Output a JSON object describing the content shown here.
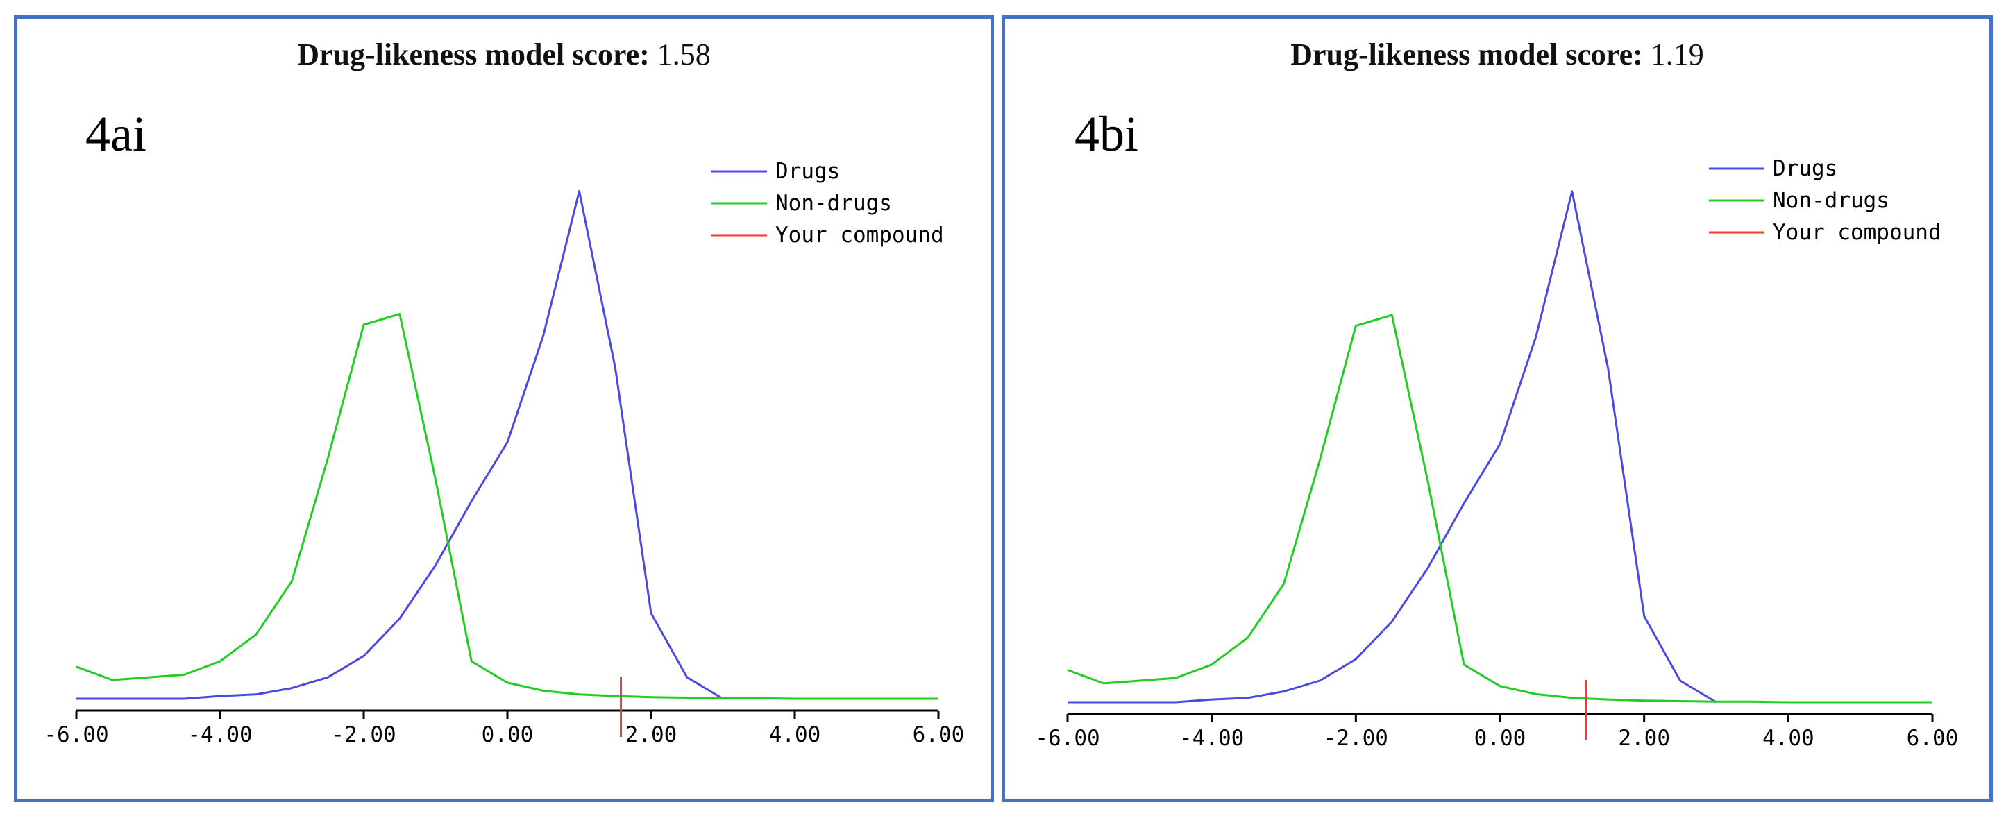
{
  "chart_data": [
    {
      "type": "line",
      "panel_label": "4ai",
      "title": "Drug-likeness model score:",
      "score_value": "1.58",
      "compound_score": 1.58,
      "xlim": [
        -6,
        6
      ],
      "ylim": [
        0,
        1
      ],
      "xticks": [
        -6,
        -4,
        -2,
        0,
        2,
        4,
        6
      ],
      "xtick_labels": [
        "-6.00",
        "-4.00",
        "-2.00",
        "0.00",
        "2.00",
        "4.00",
        "6.00"
      ],
      "legend_position": "top-right",
      "series": [
        {
          "name": "Drugs",
          "color": "#4a4ae0",
          "x": [
            -6.0,
            -5.5,
            -5.0,
            -4.5,
            -4.0,
            -3.5,
            -3.0,
            -2.5,
            -2.0,
            -1.5,
            -1.0,
            -0.5,
            0.0,
            0.5,
            1.0,
            1.5,
            2.0,
            2.5,
            3.0
          ],
          "y": [
            0.0,
            0.0,
            0.0,
            0.0,
            0.005,
            0.008,
            0.02,
            0.04,
            0.08,
            0.15,
            0.25,
            0.37,
            0.48,
            0.68,
            0.95,
            0.62,
            0.16,
            0.04,
            0.0
          ]
        },
        {
          "name": "Non-drugs",
          "color": "#22cc22",
          "x": [
            -6.0,
            -5.5,
            -5.0,
            -4.5,
            -4.0,
            -3.5,
            -3.0,
            -2.5,
            -2.0,
            -1.5,
            -1.0,
            -0.5,
            0.0,
            0.5,
            1.0,
            1.5,
            2.0,
            2.5,
            3.0,
            3.5,
            4.0,
            4.5,
            5.0,
            5.5,
            6.0
          ],
          "y": [
            0.06,
            0.035,
            0.04,
            0.045,
            0.07,
            0.12,
            0.22,
            0.45,
            0.7,
            0.72,
            0.41,
            0.07,
            0.03,
            0.015,
            0.008,
            0.005,
            0.003,
            0.002,
            0.001,
            0.001,
            0.0,
            0.0,
            0.0,
            0.0,
            0.0
          ]
        },
        {
          "name": "Your compound",
          "color": "#ff3333"
        }
      ]
    },
    {
      "type": "line",
      "panel_label": "4bi",
      "title": "Drug-likeness model score:",
      "score_value": "1.19",
      "compound_score": 1.19,
      "xlim": [
        -6,
        6
      ],
      "ylim": [
        0,
        1
      ],
      "xticks": [
        -6,
        -4,
        -2,
        0,
        2,
        4,
        6
      ],
      "xtick_labels": [
        "-6.00",
        "-4.00",
        "-2.00",
        "0.00",
        "2.00",
        "4.00",
        "6.00"
      ],
      "legend_position": "top-right",
      "series": [
        {
          "name": "Drugs",
          "color": "#4a4ae0",
          "x": [
            -6.0,
            -5.5,
            -5.0,
            -4.5,
            -4.0,
            -3.5,
            -3.0,
            -2.5,
            -2.0,
            -1.5,
            -1.0,
            -0.5,
            0.0,
            0.5,
            1.0,
            1.5,
            2.0,
            2.5,
            3.0
          ],
          "y": [
            0.0,
            0.0,
            0.0,
            0.0,
            0.005,
            0.008,
            0.02,
            0.04,
            0.08,
            0.15,
            0.25,
            0.37,
            0.48,
            0.68,
            0.95,
            0.62,
            0.16,
            0.04,
            0.0
          ]
        },
        {
          "name": "Non-drugs",
          "color": "#22cc22",
          "x": [
            -6.0,
            -5.5,
            -5.0,
            -4.5,
            -4.0,
            -3.5,
            -3.0,
            -2.5,
            -2.0,
            -1.5,
            -1.0,
            -0.5,
            0.0,
            0.5,
            1.0,
            1.5,
            2.0,
            2.5,
            3.0,
            3.5,
            4.0,
            4.5,
            5.0,
            5.5,
            6.0
          ],
          "y": [
            0.06,
            0.035,
            0.04,
            0.045,
            0.07,
            0.12,
            0.22,
            0.45,
            0.7,
            0.72,
            0.41,
            0.07,
            0.03,
            0.015,
            0.008,
            0.005,
            0.003,
            0.002,
            0.001,
            0.001,
            0.0,
            0.0,
            0.0,
            0.0,
            0.0
          ]
        },
        {
          "name": "Your compound",
          "color": "#ff3333"
        }
      ]
    }
  ]
}
